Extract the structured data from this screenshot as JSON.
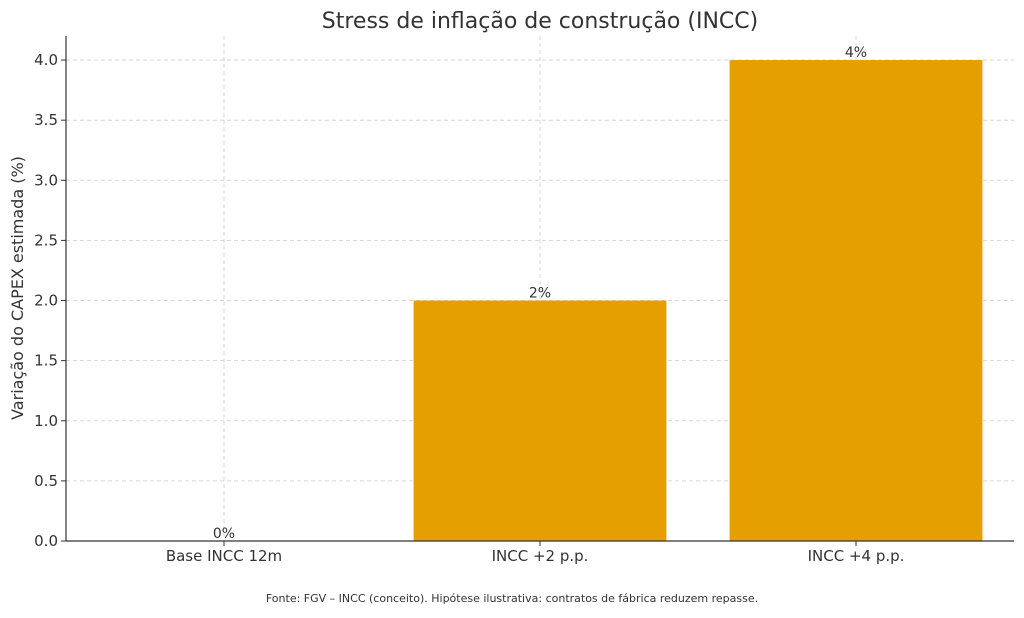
{
  "chart_data": {
    "type": "bar",
    "title": "Stress de inflação de construção (INCC)",
    "xlabel": "",
    "ylabel": "Variação do CAPEX estimada (%)",
    "categories": [
      "Base INCC 12m",
      "INCC +2 p.p.",
      "INCC +4 p.p."
    ],
    "values": [
      0,
      2,
      4
    ],
    "data_labels": [
      "0%",
      "2%",
      "4%"
    ],
    "ylim": [
      0,
      4.2
    ],
    "yticks": [
      0,
      0.5,
      1.0,
      1.5,
      2.0,
      2.5,
      3.0,
      3.5,
      4.0
    ],
    "ytick_labels": [
      "0.0",
      "0.5",
      "1.0",
      "1.5",
      "2.0",
      "2.5",
      "3.0",
      "3.5",
      "4.0"
    ],
    "grid": true,
    "bar_color": "#E5A000",
    "footnote": "Fonte: FGV – INCC (conceito). Hipótese ilustrativa: contratos de fábrica reduzem repasse."
  }
}
